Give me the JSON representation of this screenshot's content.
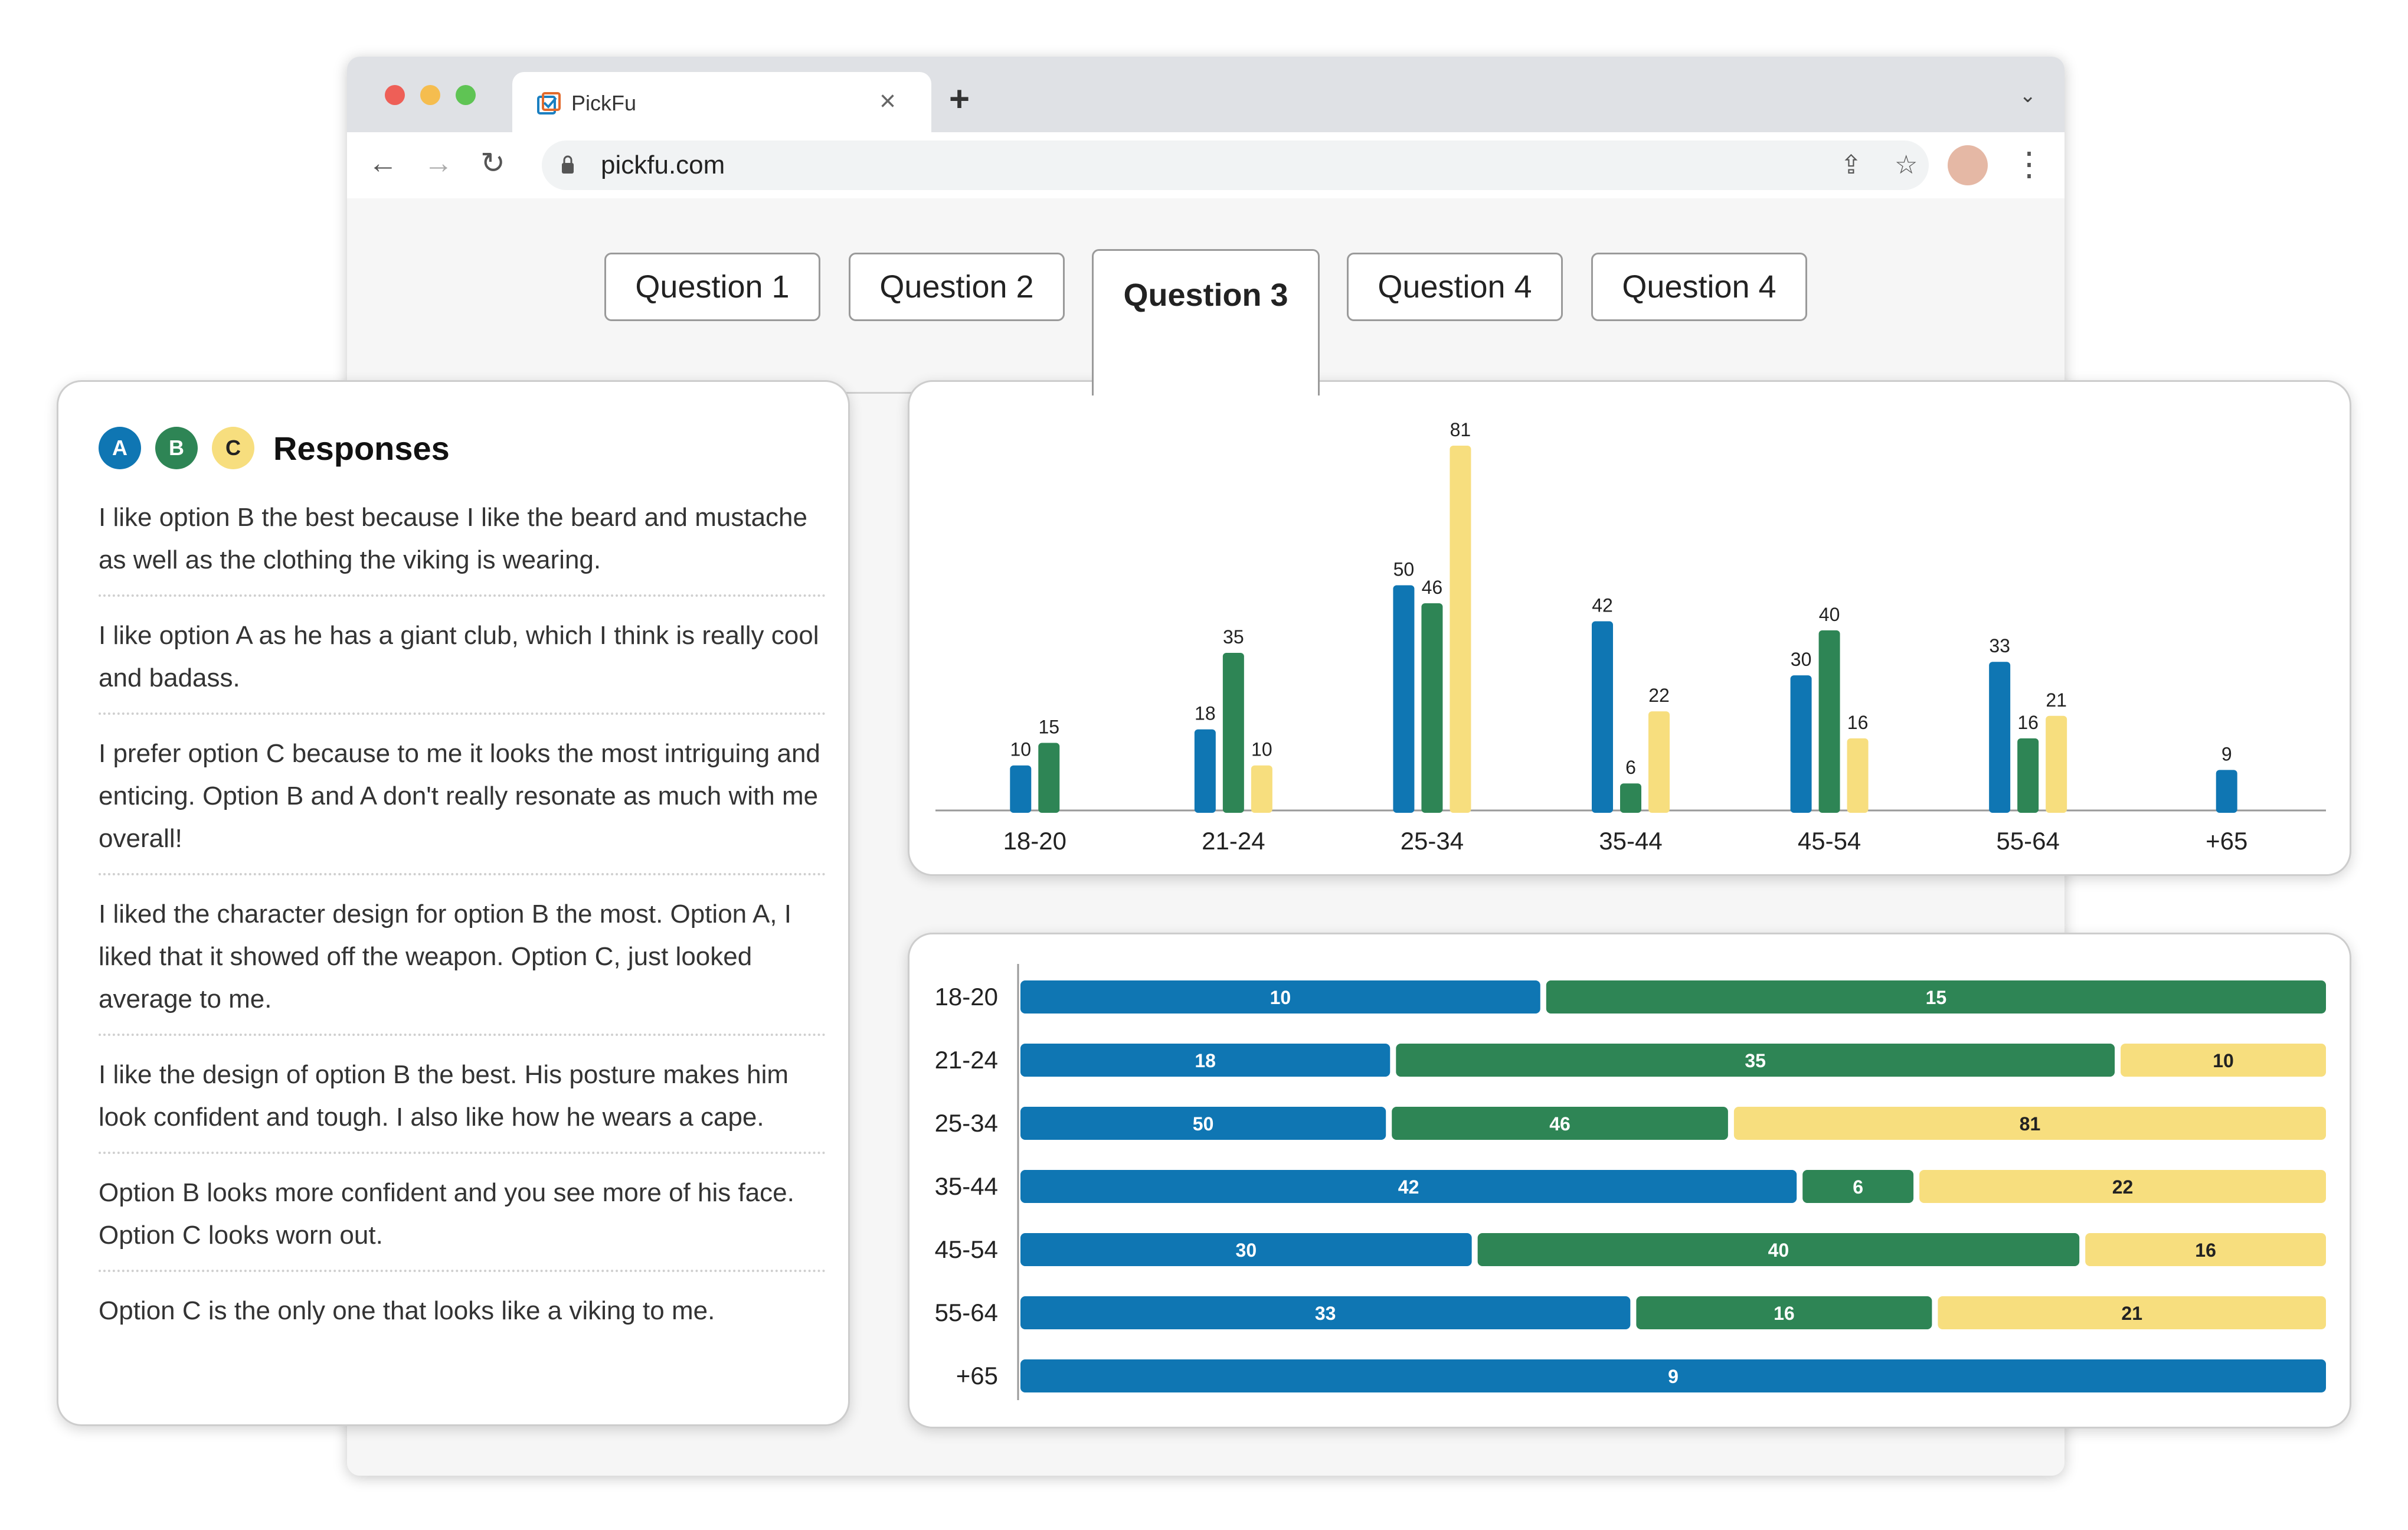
{
  "browser": {
    "tab_title": "PickFu",
    "url": "pickfu.com",
    "colors": {
      "close": "#ee5f57",
      "minimize": "#f5bd4f",
      "maximize": "#5fc454"
    }
  },
  "question_tabs": [
    {
      "label": "Question 1",
      "active": false
    },
    {
      "label": "Question 2",
      "active": false
    },
    {
      "label": "Question 3",
      "active": true
    },
    {
      "label": "Question 4",
      "active": false
    },
    {
      "label": "Question 4",
      "active": false
    }
  ],
  "responses": {
    "title": "Responses",
    "options": [
      {
        "letter": "A",
        "color": "#0f76b3"
      },
      {
        "letter": "B",
        "color": "#2e8555"
      },
      {
        "letter": "C",
        "color": "#f7de7e"
      }
    ],
    "items": [
      "I like option B the best because I like the beard and mustache as well as the clothing the viking is wearing.",
      "I like option A as he has a giant club, which I think is really cool and badass.",
      "I prefer option C because to me it looks the most intriguing and enticing. Option B and A don't really resonate as much with me overall!",
      "I liked the character design for option B the most. Option A, I liked that it showed off the weapon. Option C, just looked average to me.",
      "I like the design of option B the best. His posture makes him look confident and tough. I also like how he wears a cape.",
      "Option B looks more confident and you see more of his face. Option C looks worn out.",
      "Option C is the only one that looks like a viking to me."
    ]
  },
  "chart_data": [
    {
      "type": "bar",
      "orientation": "vertical",
      "categories": [
        "18-20",
        "21-24",
        "25-34",
        "35-44",
        "45-54",
        "55-64",
        "+65"
      ],
      "series": [
        {
          "values": [
            10,
            18,
            50,
            42,
            30,
            33,
            9
          ],
          "color": "#0f76b3"
        },
        {
          "values": [
            15,
            35,
            46,
            6,
            40,
            16,
            null
          ],
          "color": "#2e8555"
        },
        {
          "values": [
            null,
            10,
            81,
            22,
            16,
            21,
            null
          ],
          "color": "#f7de7e"
        }
      ],
      "ylim": [
        0,
        81
      ],
      "grid": false,
      "data_labels": true
    },
    {
      "type": "bar",
      "orientation": "horizontal",
      "stacked": "percent",
      "categories": [
        "18-20",
        "21-24",
        "25-34",
        "35-44",
        "45-54",
        "55-64",
        "+65"
      ],
      "series": [
        {
          "values": [
            10,
            18,
            50,
            42,
            30,
            33,
            9
          ],
          "color": "#0f76b3"
        },
        {
          "values": [
            15,
            35,
            46,
            6,
            40,
            16,
            null
          ],
          "color": "#2e8555"
        },
        {
          "values": [
            null,
            10,
            81,
            22,
            16,
            21,
            null
          ],
          "color": "#f7de7e"
        }
      ],
      "grid": false,
      "data_labels": true
    }
  ]
}
